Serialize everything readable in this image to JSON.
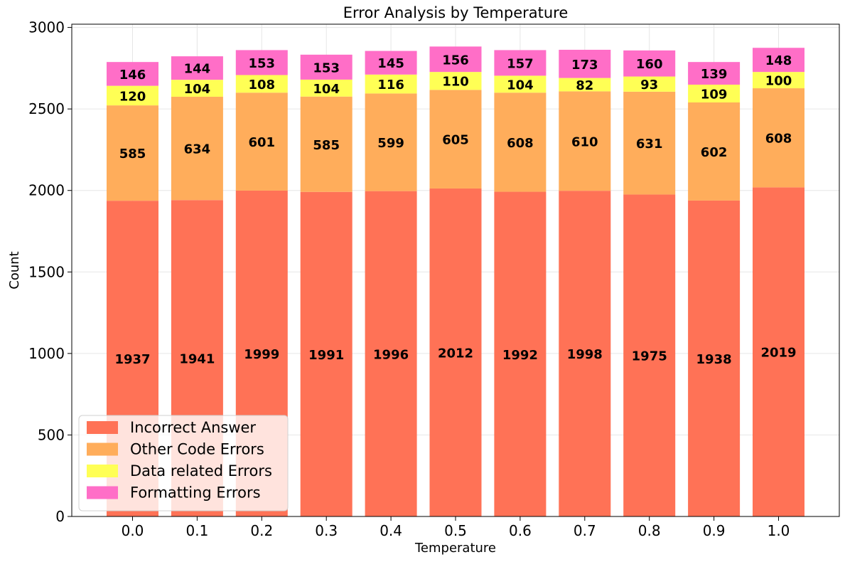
{
  "chart_data": {
    "type": "bar",
    "stacked": true,
    "title": "Error Analysis by Temperature",
    "xlabel": "Temperature",
    "ylabel": "Count",
    "categories": [
      "0.0",
      "0.1",
      "0.2",
      "0.3",
      "0.4",
      "0.5",
      "0.6",
      "0.7",
      "0.8",
      "0.9",
      "1.0"
    ],
    "ylim": [
      0,
      3000
    ],
    "yticks": [
      "0",
      "500",
      "1000",
      "1500",
      "2000",
      "2500",
      "3000"
    ],
    "ytick_values": [
      0,
      500,
      1000,
      1500,
      2000,
      2500,
      3000
    ],
    "grid": true,
    "legend_position": "lower-left",
    "series": [
      {
        "name": "Incorrect Answer",
        "color": "#ff7256",
        "values": [
          1937,
          1941,
          1999,
          1991,
          1996,
          2012,
          1992,
          1998,
          1975,
          1938,
          2019
        ]
      },
      {
        "name": "Other Code Errors",
        "color": "#ffad5b",
        "values": [
          585,
          634,
          601,
          585,
          599,
          605,
          608,
          610,
          631,
          602,
          608
        ]
      },
      {
        "name": "Data related Errors",
        "color": "#ffff55",
        "values": [
          120,
          104,
          108,
          104,
          116,
          110,
          104,
          82,
          93,
          109,
          100
        ]
      },
      {
        "name": "Formatting Errors",
        "color": "#ff6ec7",
        "values": [
          146,
          144,
          153,
          153,
          145,
          156,
          157,
          173,
          160,
          139,
          148
        ]
      }
    ]
  }
}
